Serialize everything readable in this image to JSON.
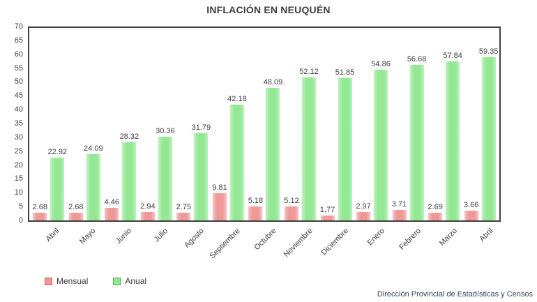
{
  "title": "INFLACIÓN EN NEUQUÉN",
  "legend": {
    "mensual_label": "Mensual",
    "anual_label": "Anual"
  },
  "footer": {
    "source": "Dirección Provincial de Estadísticas y Censos"
  },
  "colors": {
    "mensual_fill": "#ee9898",
    "mensual_edge": "#f8c2c2",
    "mensual_border": "#cc5f5f",
    "anual_fill": "#94e894",
    "anual_edge": "#bcf4bc",
    "anual_border": "#4fae4f",
    "axis_border": "#3f3f3f",
    "text": "#3d3d3d",
    "footer_text": "#344563"
  },
  "chart_data": {
    "type": "bar",
    "title": "INFLACIÓN EN NEUQUÉN",
    "categories": [
      "Abril",
      "Mayo",
      "Junio",
      "Julio",
      "Agosto",
      "Septiembre",
      "Octubre",
      "Noviembre",
      "Diciembre",
      "Enero",
      "Febrero",
      "Marzo",
      "Abril"
    ],
    "series": [
      {
        "name": "Mensual",
        "values": [
          2.68,
          2.68,
          4.46,
          2.94,
          2.75,
          9.81,
          5.18,
          5.12,
          1.77,
          2.97,
          3.71,
          2.69,
          3.66
        ]
      },
      {
        "name": "Anual",
        "values": [
          22.92,
          24.09,
          28.32,
          30.36,
          31.79,
          42.18,
          48.09,
          52.12,
          51.85,
          54.86,
          56.68,
          57.84,
          59.35
        ]
      }
    ],
    "xlabel": "",
    "ylabel": "",
    "ylim": [
      0,
      70
    ],
    "ytick_step": 5,
    "grid": false,
    "value_labels": true,
    "legend_position": "bottom-left"
  }
}
